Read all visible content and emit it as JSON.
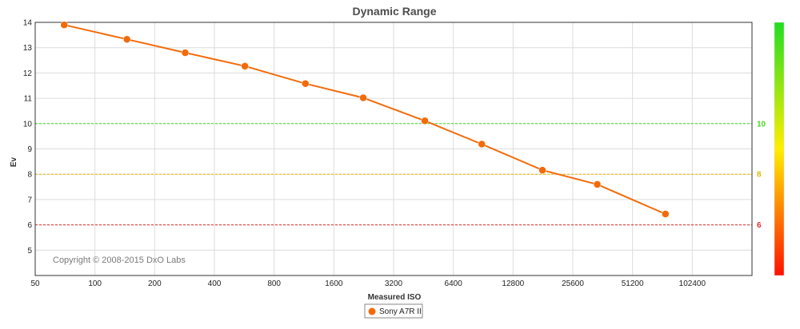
{
  "chart_data": {
    "type": "line",
    "title": "Dynamic Range",
    "xlabel": "Measured ISO",
    "ylabel": "Ev",
    "x_scale": "log2",
    "x_tick_labels": [
      "50",
      "100",
      "200",
      "400",
      "800",
      "1600",
      "3200",
      "6400",
      "12800",
      "25600",
      "51200",
      "102400"
    ],
    "x_ticks": [
      50,
      100,
      200,
      400,
      800,
      1600,
      3200,
      6400,
      12800,
      25600,
      51200,
      102400
    ],
    "xlim": [
      50,
      204800
    ],
    "ylim": [
      4,
      14
    ],
    "y_ticks": [
      5,
      6,
      7,
      8,
      9,
      10,
      11,
      12,
      13,
      14
    ],
    "grid": true,
    "series": [
      {
        "name": "Sony A7R II",
        "color": "#f26b0a",
        "x": [
          70,
          145,
          285,
          570,
          1150,
          2250,
          4600,
          8900,
          18000,
          34000,
          75000
        ],
        "y": [
          13.9,
          13.33,
          12.8,
          12.27,
          11.58,
          11.02,
          10.11,
          9.19,
          8.16,
          7.6,
          6.43
        ]
      }
    ],
    "reference_lines": [
      {
        "value": 10,
        "label": "10",
        "color": "#44dd22"
      },
      {
        "value": 8,
        "label": "8",
        "color": "#e6b800"
      },
      {
        "value": 6,
        "label": "6",
        "color": "#e53030"
      }
    ],
    "copyright": "Copyright © 2008-2015 DxO Labs",
    "legend_position": "bottom-center",
    "colorbar": {
      "top_color": "#22dd22",
      "mid_color": "#ffee00",
      "bottom_color": "#ff1100"
    }
  }
}
